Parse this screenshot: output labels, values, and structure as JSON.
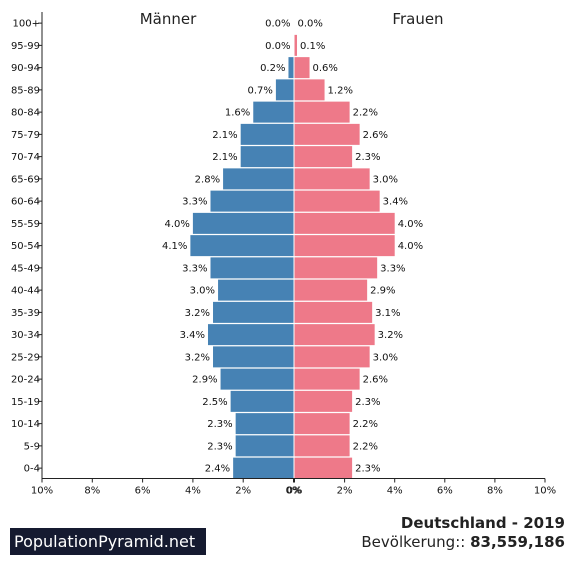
{
  "chart_data": {
    "type": "bar",
    "orientation": "horizontal-population-pyramid",
    "categories": [
      "100+",
      "95-99",
      "90-94",
      "85-89",
      "80-84",
      "75-79",
      "70-74",
      "65-69",
      "60-64",
      "55-59",
      "50-54",
      "45-49",
      "40-44",
      "35-39",
      "30-34",
      "25-29",
      "20-24",
      "15-19",
      "10-14",
      "5-9",
      "0-4"
    ],
    "series": [
      {
        "name": "Männer",
        "color": "#4682b4",
        "values": [
          0.0,
          0.0,
          0.2,
          0.7,
          1.6,
          2.1,
          2.1,
          2.8,
          3.3,
          4.0,
          4.1,
          3.3,
          3.0,
          3.2,
          3.4,
          3.2,
          2.9,
          2.5,
          2.3,
          2.3,
          2.4
        ],
        "labels": [
          "0.0%",
          "0.0%",
          "0.2%",
          "0.7%",
          "1.6%",
          "2.1%",
          "2.1%",
          "2.8%",
          "3.3%",
          "4.0%",
          "4.1%",
          "3.3%",
          "3.0%",
          "3.2%",
          "3.4%",
          "3.2%",
          "2.9%",
          "2.5%",
          "2.3%",
          "2.3%",
          "2.4%"
        ]
      },
      {
        "name": "Frauen",
        "color": "#ee7989",
        "values": [
          0.0,
          0.1,
          0.6,
          1.2,
          2.2,
          2.6,
          2.3,
          3.0,
          3.4,
          4.0,
          4.0,
          3.3,
          2.9,
          3.1,
          3.2,
          3.0,
          2.6,
          2.3,
          2.2,
          2.2,
          2.3
        ],
        "labels": [
          "0.0%",
          "0.1%",
          "0.6%",
          "1.2%",
          "2.2%",
          "2.6%",
          "2.3%",
          "3.0%",
          "3.4%",
          "4.0%",
          "4.0%",
          "3.3%",
          "2.9%",
          "3.1%",
          "3.2%",
          "3.0%",
          "2.6%",
          "2.3%",
          "2.2%",
          "2.2%",
          "2.3%"
        ]
      }
    ],
    "xlim": [
      -10,
      10
    ],
    "xticks": [
      -10,
      -8,
      -6,
      -4,
      -2,
      0,
      2,
      4,
      6,
      8,
      10
    ],
    "xtick_labels_left": [
      "10%",
      "8%",
      "6%",
      "4%",
      "2%",
      "0%"
    ],
    "xtick_labels_right": [
      "0%",
      "2%",
      "4%",
      "6%",
      "8%",
      "10%"
    ],
    "grid": false,
    "legend": "series names above each half"
  },
  "footer": {
    "brand": "PopulationPyramid.net",
    "country": "Deutschland - 2019",
    "population_label": "Bevölkerung::",
    "population_value": "83,559,186"
  }
}
